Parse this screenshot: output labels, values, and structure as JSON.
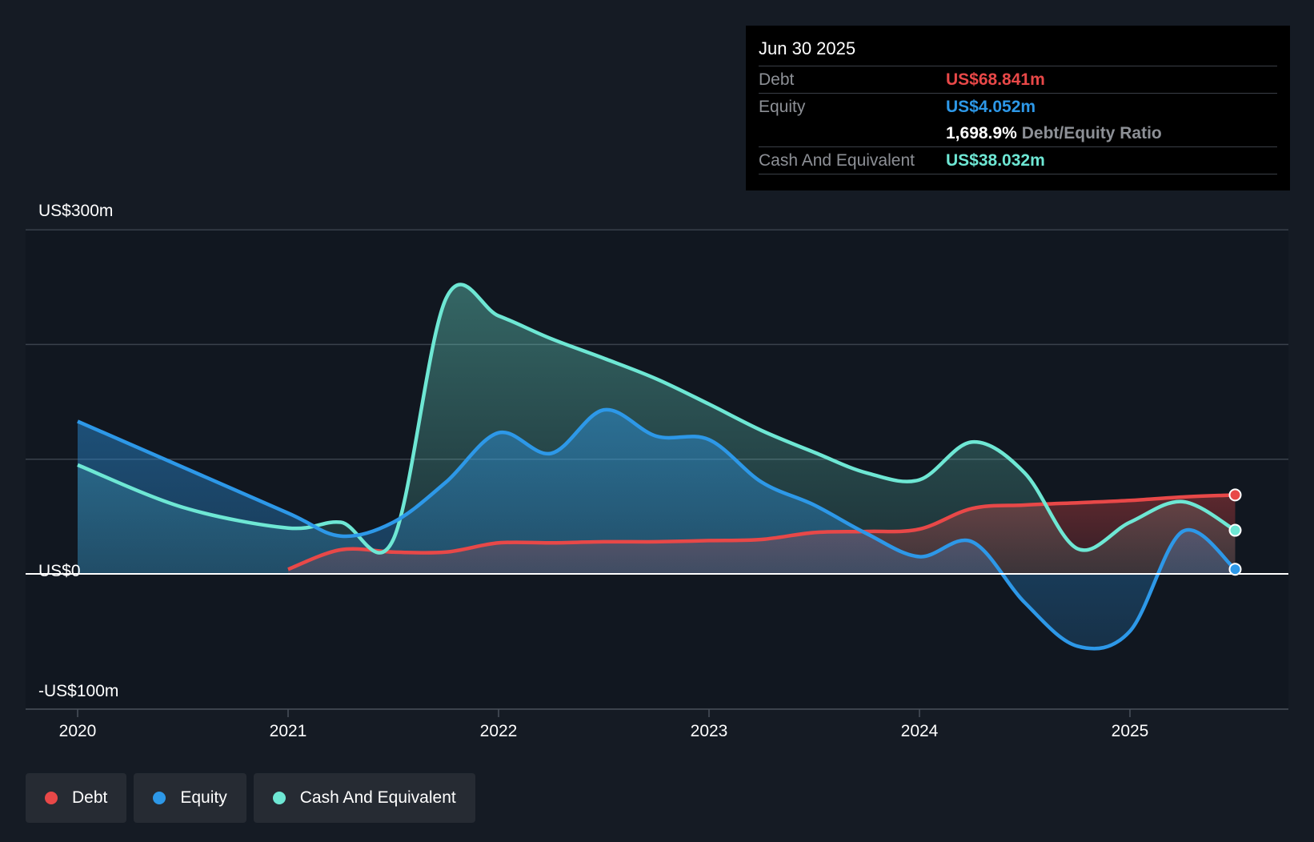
{
  "colors": {
    "debt": "#e84848",
    "equity": "#2d98e8",
    "cash": "#6ee7d4",
    "background": "#151b24",
    "grid": "#3a414b",
    "zero_line": "#ffffff"
  },
  "tooltip": {
    "date": "Jun 30 2025",
    "debt_label": "Debt",
    "debt_value": "US$68.841m",
    "equity_label": "Equity",
    "equity_value": "US$4.052m",
    "ratio_value": "1,698.9%",
    "ratio_label": "Debt/Equity Ratio",
    "cash_label": "Cash And Equivalent",
    "cash_value": "US$38.032m"
  },
  "legend": [
    {
      "label": "Debt",
      "color": "#e84848"
    },
    {
      "label": "Equity",
      "color": "#2d98e8"
    },
    {
      "label": "Cash And Equivalent",
      "color": "#6ee7d4"
    }
  ],
  "chart_data": {
    "type": "area",
    "title": "",
    "xlabel": "",
    "ylabel": "",
    "xlim": [
      2020.0,
      2025.5
    ],
    "ylim": [
      -100,
      300
    ],
    "y_ticks": [
      -100,
      0,
      300
    ],
    "y_tick_labels": [
      "-US$100m",
      "US$0",
      "US$300m"
    ],
    "x_ticks": [
      2020,
      2021,
      2022,
      2023,
      2024,
      2025
    ],
    "x_tick_labels": [
      "2020",
      "2021",
      "2022",
      "2023",
      "2024",
      "2025"
    ],
    "gridlines": [
      100,
      200,
      300
    ],
    "highlight_x": 2025.5,
    "series": [
      {
        "name": "Cash And Equivalent",
        "key": "cash",
        "x": [
          2020.0,
          2020.5,
          2021.0,
          2021.25,
          2021.5,
          2021.75,
          2022.0,
          2022.25,
          2022.5,
          2022.75,
          2023.0,
          2023.25,
          2023.5,
          2023.75,
          2024.0,
          2024.25,
          2024.5,
          2024.75,
          2025.0,
          2025.25,
          2025.5
        ],
        "values": [
          95,
          58,
          40,
          45,
          30,
          240,
          225,
          205,
          188,
          170,
          148,
          125,
          106,
          88,
          82,
          115,
          88,
          22,
          45,
          63,
          38
        ]
      },
      {
        "name": "Equity",
        "key": "equity",
        "x": [
          2020.0,
          2020.5,
          2021.0,
          2021.25,
          2021.5,
          2021.75,
          2022.0,
          2022.25,
          2022.5,
          2022.75,
          2023.0,
          2023.25,
          2023.5,
          2023.75,
          2024.0,
          2024.25,
          2024.5,
          2024.75,
          2025.0,
          2025.25,
          2025.5
        ],
        "values": [
          133,
          93,
          53,
          33,
          45,
          80,
          123,
          105,
          143,
          120,
          117,
          80,
          60,
          35,
          15,
          28,
          -25,
          -63,
          -50,
          37,
          4.052
        ]
      },
      {
        "name": "Debt",
        "key": "debt",
        "x": [
          2021.0,
          2021.25,
          2021.5,
          2021.75,
          2022.0,
          2022.25,
          2022.5,
          2022.75,
          2023.0,
          2023.25,
          2023.5,
          2023.75,
          2024.0,
          2024.25,
          2024.5,
          2024.75,
          2025.0,
          2025.25,
          2025.5
        ],
        "values": [
          4,
          21,
          19,
          19,
          27,
          27,
          28,
          28,
          29,
          30,
          36,
          37,
          39,
          57,
          60,
          62,
          64,
          67,
          68.841
        ]
      }
    ]
  }
}
